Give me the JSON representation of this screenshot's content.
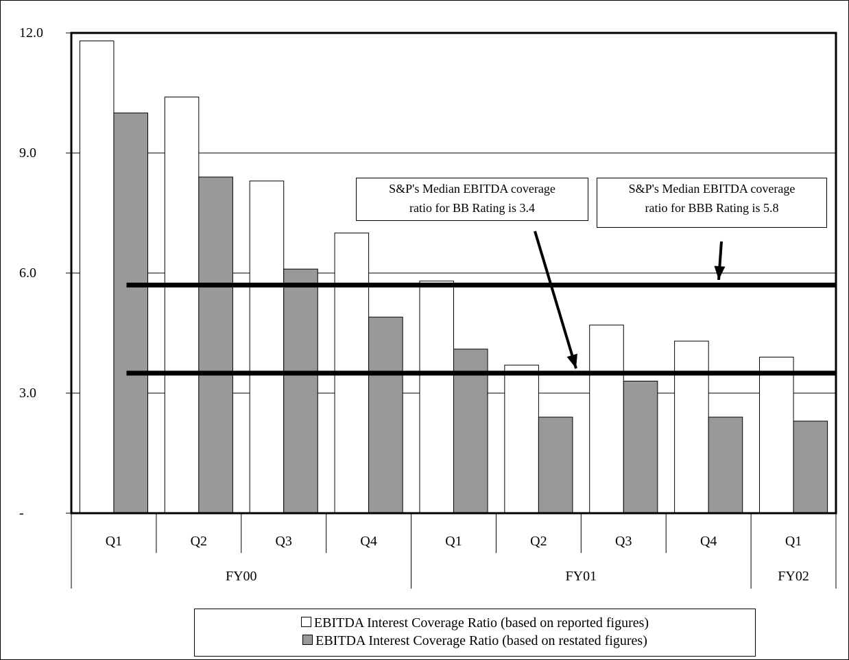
{
  "chart_data": {
    "type": "bar",
    "y_ticks": [
      "12.0",
      "9.0",
      "6.0",
      "3.0",
      "-"
    ],
    "ylim": [
      0,
      12
    ],
    "grid": true,
    "categories": [
      "Q1",
      "Q2",
      "Q3",
      "Q4",
      "Q1",
      "Q2",
      "Q3",
      "Q4",
      "Q1"
    ],
    "groups": [
      {
        "label": "FY00",
        "span": 4
      },
      {
        "label": "FY01",
        "span": 4
      },
      {
        "label": "FY02",
        "span": 1
      }
    ],
    "series": [
      {
        "name": "EBITDA Interest Coverage Ratio (based on reported figures)",
        "color": "#ffffff",
        "values": [
          11.8,
          10.4,
          8.3,
          7.0,
          5.8,
          3.7,
          4.7,
          4.3,
          3.9
        ]
      },
      {
        "name": "EBITDA Interest Coverage Ratio (based on restated figures)",
        "color": "#999999",
        "values": [
          10.0,
          8.4,
          6.1,
          4.9,
          4.1,
          2.4,
          3.3,
          2.4,
          2.3
        ]
      }
    ],
    "reference_lines": [
      5.7,
      3.5
    ],
    "annotations": [
      {
        "line1": "S&P's Median EBITDA coverage",
        "line2": "ratio for BB Rating is 3.4"
      },
      {
        "line1": "S&P's Median EBITDA coverage",
        "line2": "ratio for BBB Rating is 5.8"
      }
    ],
    "legend_position": "bottom"
  }
}
